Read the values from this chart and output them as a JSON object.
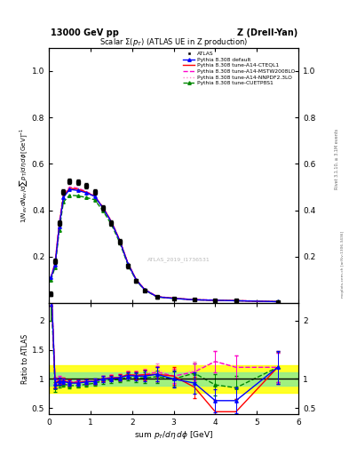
{
  "title_left": "13000 GeV pp",
  "title_right": "Z (Drell-Yan)",
  "plot_title": "Scalar $\\Sigma(p_T)$ (ATLAS UE in Z production)",
  "ylabel_main": "$1/N_{ev}\\,dN_{ev}/d\\sum p_T/d\\eta\\,d\\phi\\,[\\mathrm{GeV}]^{-1}$",
  "ylabel_ratio": "Ratio to ATLAS",
  "xlabel": "sum $p_T/d\\eta\\,d\\phi$ [GeV]",
  "watermark": "ATLAS_2019_I1736531",
  "right_label": "mcplots.cern.ch [arXiv:1306.3436]",
  "rivet_label": "Rivet 3.1.10, ≥ 3.1M events",
  "xdata": [
    0.05,
    0.15,
    0.25,
    0.35,
    0.5,
    0.7,
    0.9,
    1.1,
    1.3,
    1.5,
    1.7,
    1.9,
    2.1,
    2.3,
    2.6,
    3.0,
    3.5,
    4.0,
    4.5,
    5.5
  ],
  "atlas_y": [
    0.04,
    0.18,
    0.345,
    0.48,
    0.525,
    0.52,
    0.505,
    0.48,
    0.41,
    0.345,
    0.265,
    0.16,
    0.095,
    0.055,
    0.025,
    0.02,
    0.015,
    0.012,
    0.01,
    0.005
  ],
  "atlas_yerr": [
    0.008,
    0.012,
    0.012,
    0.012,
    0.012,
    0.012,
    0.012,
    0.012,
    0.012,
    0.012,
    0.012,
    0.01,
    0.007,
    0.005,
    0.004,
    0.003,
    0.003,
    0.002,
    0.002,
    0.001
  ],
  "default_y": [
    0.11,
    0.165,
    0.33,
    0.455,
    0.49,
    0.485,
    0.475,
    0.46,
    0.41,
    0.35,
    0.27,
    0.17,
    0.1,
    0.058,
    0.027,
    0.02,
    0.014,
    0.012,
    0.01,
    0.006
  ],
  "cteql1_y": [
    0.11,
    0.17,
    0.335,
    0.46,
    0.495,
    0.49,
    0.478,
    0.46,
    0.412,
    0.352,
    0.272,
    0.172,
    0.101,
    0.059,
    0.027,
    0.021,
    0.014,
    0.012,
    0.01,
    0.006
  ],
  "mstw_y": [
    0.11,
    0.175,
    0.345,
    0.47,
    0.5,
    0.495,
    0.48,
    0.462,
    0.413,
    0.353,
    0.272,
    0.172,
    0.101,
    0.059,
    0.028,
    0.021,
    0.015,
    0.013,
    0.011,
    0.006
  ],
  "nnpdf_y": [
    0.11,
    0.175,
    0.345,
    0.47,
    0.5,
    0.496,
    0.481,
    0.463,
    0.414,
    0.354,
    0.273,
    0.173,
    0.102,
    0.06,
    0.029,
    0.021,
    0.015,
    0.013,
    0.011,
    0.006
  ],
  "cuetp_y": [
    0.1,
    0.155,
    0.315,
    0.435,
    0.465,
    0.462,
    0.455,
    0.445,
    0.398,
    0.34,
    0.262,
    0.165,
    0.097,
    0.056,
    0.026,
    0.02,
    0.014,
    0.012,
    0.01,
    0.006
  ],
  "ratio_default_y": [
    2.75,
    0.92,
    0.96,
    0.96,
    0.93,
    0.93,
    0.95,
    0.96,
    1.0,
    1.01,
    1.02,
    1.06,
    1.05,
    1.05,
    1.08,
    1.0,
    0.93,
    0.63,
    0.63,
    1.2
  ],
  "ratio_cteql1_y": [
    2.75,
    0.94,
    0.97,
    0.97,
    0.94,
    0.94,
    0.956,
    0.958,
    1.005,
    1.02,
    1.026,
    1.075,
    1.063,
    1.073,
    1.08,
    1.05,
    0.86,
    0.44,
    0.44,
    1.2
  ],
  "ratio_mstw_y": [
    2.75,
    0.97,
    1.0,
    0.99,
    0.95,
    0.952,
    0.96,
    0.963,
    1.007,
    1.023,
    1.026,
    1.075,
    1.063,
    1.073,
    1.12,
    1.05,
    1.12,
    1.3,
    1.2,
    1.2
  ],
  "ratio_nnpdf_y": [
    2.75,
    0.97,
    1.0,
    0.99,
    0.952,
    0.954,
    0.962,
    0.965,
    1.01,
    1.026,
    1.03,
    1.081,
    1.074,
    1.09,
    1.16,
    1.05,
    1.15,
    1.3,
    1.2,
    1.2
  ],
  "ratio_cuetp_y": [
    2.5,
    0.86,
    0.91,
    0.916,
    0.886,
    0.888,
    0.91,
    0.927,
    0.97,
    0.986,
    0.989,
    1.031,
    1.021,
    1.018,
    1.04,
    1.0,
    1.1,
    0.9,
    0.85,
    1.2
  ],
  "ratio_default_err": [
    0.5,
    0.08,
    0.06,
    0.05,
    0.05,
    0.04,
    0.04,
    0.04,
    0.05,
    0.05,
    0.05,
    0.06,
    0.07,
    0.09,
    0.12,
    0.15,
    0.18,
    0.2,
    0.22,
    0.28
  ],
  "ratio_cteql1_err": [
    0.5,
    0.08,
    0.06,
    0.05,
    0.05,
    0.04,
    0.04,
    0.04,
    0.05,
    0.05,
    0.05,
    0.06,
    0.07,
    0.09,
    0.12,
    0.15,
    0.18,
    0.2,
    0.22,
    0.28
  ],
  "ratio_mstw_err": [
    0.5,
    0.06,
    0.05,
    0.04,
    0.04,
    0.04,
    0.04,
    0.04,
    0.05,
    0.05,
    0.05,
    0.06,
    0.07,
    0.08,
    0.1,
    0.12,
    0.15,
    0.18,
    0.2,
    0.25
  ],
  "ratio_nnpdf_err": [
    0.5,
    0.06,
    0.05,
    0.04,
    0.04,
    0.04,
    0.04,
    0.04,
    0.05,
    0.05,
    0.05,
    0.06,
    0.07,
    0.08,
    0.1,
    0.12,
    0.15,
    0.18,
    0.2,
    0.25
  ],
  "ratio_cuetp_err": [
    0.5,
    0.08,
    0.06,
    0.05,
    0.05,
    0.04,
    0.04,
    0.04,
    0.05,
    0.05,
    0.05,
    0.06,
    0.07,
    0.09,
    0.11,
    0.13,
    0.16,
    0.18,
    0.2,
    0.26
  ],
  "band_yellow_y1": 0.77,
  "band_yellow_y2": 1.23,
  "band_green_y1": 0.88,
  "band_green_y2": 1.12,
  "xlim": [
    0.0,
    6.0
  ],
  "ylim_main": [
    0.0,
    1.1
  ],
  "ylim_ratio": [
    0.4,
    2.3
  ],
  "yticks_main": [
    0.2,
    0.4,
    0.6,
    0.8,
    1.0
  ],
  "yticks_ratio": [
    0.5,
    1.0,
    1.5,
    2.0
  ],
  "color_default": "#0000ff",
  "color_cteql1": "#ff0000",
  "color_mstw": "#ff00cc",
  "color_nnpdf": "#ff88cc",
  "color_cuetp": "#008800",
  "color_atlas": "#000000"
}
